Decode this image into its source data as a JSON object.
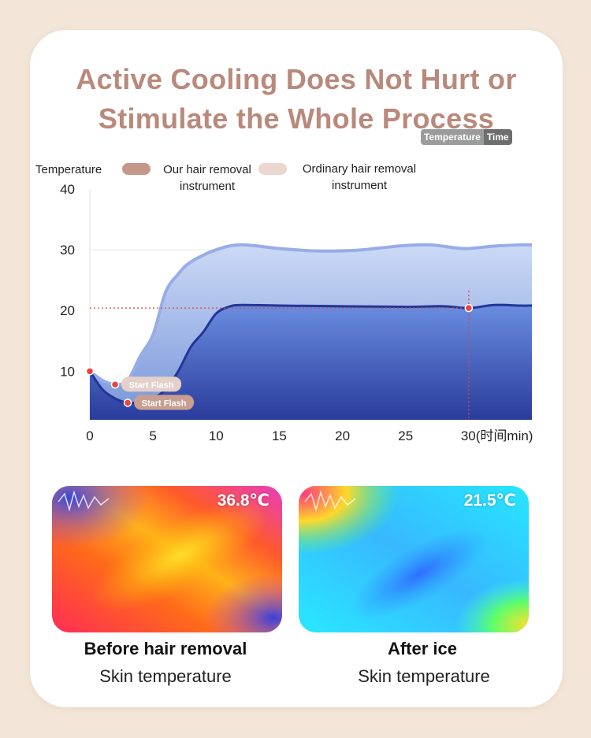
{
  "title": {
    "line1": "Active Cooling Does Not Hurt or",
    "line2": "Stimulate the Whole Process"
  },
  "legend": {
    "axis_title": "Temperature",
    "our": "Our hair removal\ninstrument",
    "ordinary": "Ordinary hair removal\ninstrument",
    "our_color": "#c4978a",
    "ordinary_color": "#ecd6d0"
  },
  "toggle": {
    "temperature": "Temperature",
    "time": "Time"
  },
  "chart_data": {
    "type": "area",
    "x_ticks": [
      "0",
      "5",
      "10",
      "15",
      "20",
      "25",
      "30(时间min)"
    ],
    "y_ticks": [
      "10",
      "20",
      "30",
      "40"
    ],
    "xlim": [
      0,
      35
    ],
    "ylim": [
      2,
      40
    ],
    "series": [
      {
        "name": "Ordinary hair removal instrument",
        "color": "#9fb6ec",
        "x": [
          0,
          1,
          2,
          3,
          4,
          5,
          6,
          7,
          8,
          10,
          12,
          15,
          18,
          21,
          23,
          25,
          27,
          29,
          30,
          32,
          34,
          35
        ],
        "y": [
          10,
          8.5,
          7.8,
          8.5,
          12.5,
          16,
          23,
          26,
          28,
          30,
          30.8,
          30.2,
          29.8,
          29.9,
          30.3,
          30.7,
          30.8,
          30.3,
          30.2,
          30.6,
          30.8,
          30.8
        ]
      },
      {
        "name": "Our hair removal instrument",
        "color": "#2b3e9c",
        "x": [
          0,
          1,
          2,
          3,
          4,
          5,
          6,
          7,
          8,
          9,
          10,
          11,
          12,
          15,
          20,
          25,
          28,
          30,
          32,
          34,
          35
        ],
        "y": [
          10,
          7,
          5.5,
          4.8,
          4.9,
          5.5,
          7,
          10,
          14,
          16.5,
          19.5,
          20.6,
          20.9,
          20.8,
          20.7,
          20.6,
          20.7,
          20.4,
          20.9,
          20.8,
          20.8
        ]
      }
    ],
    "markers": [
      {
        "x": 0,
        "y": 10
      },
      {
        "x": 2,
        "y": 7.8
      },
      {
        "x": 3,
        "y": 4.8
      },
      {
        "x": 30,
        "y": 20.4
      }
    ],
    "annotations": [
      {
        "text": "Start Flash",
        "x": 2,
        "y": 7.8
      },
      {
        "text": "Start Flash",
        "x": 3,
        "y": 4.8
      }
    ],
    "reference_lines": {
      "y": 20.4,
      "x": 30
    },
    "grid": "horizontal at 30"
  },
  "thermal": {
    "before": {
      "temp": "36.8℃",
      "title": "Before hair removal",
      "subtitle": "Skin temperature"
    },
    "after": {
      "temp": "21.5℃",
      "title": "After ice",
      "subtitle": "Skin temperature"
    }
  }
}
